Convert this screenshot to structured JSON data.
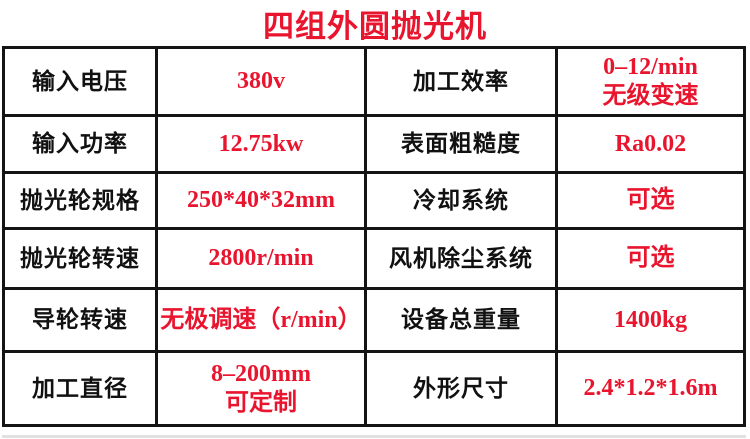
{
  "title": "四组外圆抛光机",
  "colors": {
    "accent": "#e9152f",
    "label": "#111111",
    "border": "#141414",
    "background": "#ffffff"
  },
  "specs": {
    "rows": [
      {
        "label1": "输入电压",
        "value1": "380v",
        "label2": "加工效率",
        "value2": "0–12/min\n无级变速"
      },
      {
        "label1": "输入功率",
        "value1": "12.75kw",
        "label2": "表面粗糙度",
        "value2": "Ra0.02"
      },
      {
        "label1": "抛光轮规格",
        "value1": "250*40*32mm",
        "label2": "冷却系统",
        "value2": "可选"
      },
      {
        "label1": "抛光轮转速",
        "value1": "2800r/min",
        "label2": "风机除尘系统",
        "value2": "可选"
      },
      {
        "label1": "导轮转速",
        "value1": "无极调速（r/min）",
        "label2": "设备总重量",
        "value2": "1400kg"
      },
      {
        "label1": "加工直径",
        "value1": "8–200mm\n可定制",
        "label2": "外形尺寸",
        "value2": "2.4*1.2*1.6m"
      }
    ]
  }
}
